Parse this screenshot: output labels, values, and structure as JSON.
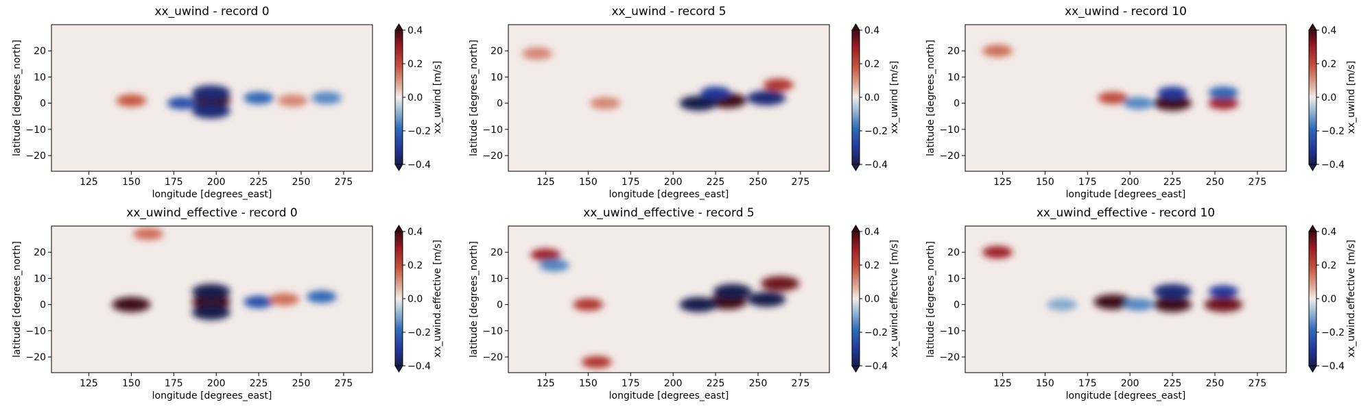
{
  "chart_data": [
    {
      "type": "heatmap",
      "title": "xx_uwind - record 0",
      "variable": "xx_uwind",
      "record": 0,
      "xlabel": "longitude [degrees_east]",
      "ylabel": "latitude [degrees_north]",
      "colorbar_label": "xx_uwind [m/s]",
      "colormap": "diverging blue-white-red",
      "xlim": [
        103,
        292
      ],
      "ylim": [
        -26,
        30
      ],
      "clim": [
        -0.4,
        0.4
      ],
      "xticks": [
        125,
        150,
        175,
        200,
        225,
        250,
        275
      ],
      "yticks": [
        -20,
        -10,
        0,
        10,
        20
      ],
      "cbar_ticks": [
        -0.4,
        -0.2,
        0.0,
        0.2,
        0.4
      ],
      "features": [
        {
          "lon": 197,
          "lat": 1,
          "value": 0.4
        },
        {
          "lon": 197,
          "lat": 4,
          "value": -0.35
        },
        {
          "lon": 197,
          "lat": -3,
          "value": -0.35
        },
        {
          "lon": 180,
          "lat": 0,
          "value": -0.25
        },
        {
          "lon": 150,
          "lat": 1,
          "value": 0.18
        },
        {
          "lon": 225,
          "lat": 2,
          "value": -0.2
        },
        {
          "lon": 245,
          "lat": 1,
          "value": 0.12
        },
        {
          "lon": 265,
          "lat": 2,
          "value": -0.15
        }
      ]
    },
    {
      "type": "heatmap",
      "title": "xx_uwind - record 5",
      "variable": "xx_uwind",
      "record": 5,
      "xlabel": "longitude [degrees_east]",
      "ylabel": "latitude [degrees_north]",
      "colorbar_label": "xx_uwind [m/s]",
      "colormap": "diverging blue-white-red",
      "xlim": [
        103,
        292
      ],
      "ylim": [
        -26,
        30
      ],
      "clim": [
        -0.4,
        0.4
      ],
      "xticks": [
        125,
        150,
        175,
        200,
        225,
        250,
        275
      ],
      "yticks": [
        -20,
        -10,
        0,
        10,
        20
      ],
      "cbar_ticks": [
        -0.4,
        -0.2,
        0.0,
        0.2,
        0.4
      ],
      "features": [
        {
          "lon": 232,
          "lat": 1,
          "value": 0.4
        },
        {
          "lon": 215,
          "lat": 0,
          "value": -0.4
        },
        {
          "lon": 255,
          "lat": 2,
          "value": -0.35
        },
        {
          "lon": 225,
          "lat": 4,
          "value": -0.3
        },
        {
          "lon": 262,
          "lat": 7,
          "value": 0.25
        },
        {
          "lon": 160,
          "lat": 0,
          "value": 0.12
        },
        {
          "lon": 120,
          "lat": 19,
          "value": 0.12
        }
      ]
    },
    {
      "type": "heatmap",
      "title": "xx_uwind - record 10",
      "variable": "xx_uwind",
      "record": 10,
      "xlabel": "longitude [degrees_east]",
      "ylabel": "latitude [degrees_north]",
      "colorbar_label": "xx_uwind [m/s]",
      "colormap": "diverging blue-white-red",
      "xlim": [
        103,
        292
      ],
      "ylim": [
        -26,
        30
      ],
      "clim": [
        -0.4,
        0.4
      ],
      "xticks": [
        125,
        150,
        175,
        200,
        225,
        250,
        275
      ],
      "yticks": [
        -20,
        -10,
        0,
        10,
        20
      ],
      "cbar_ticks": [
        -0.4,
        -0.2,
        0.0,
        0.2,
        0.4
      ],
      "features": [
        {
          "lon": 225,
          "lat": 0,
          "value": 0.4
        },
        {
          "lon": 225,
          "lat": 4,
          "value": -0.3
        },
        {
          "lon": 255,
          "lat": 0,
          "value": 0.3
        },
        {
          "lon": 255,
          "lat": 4,
          "value": -0.2
        },
        {
          "lon": 190,
          "lat": 2,
          "value": 0.2
        },
        {
          "lon": 205,
          "lat": 0,
          "value": -0.15
        },
        {
          "lon": 122,
          "lat": 20,
          "value": 0.15
        }
      ]
    },
    {
      "type": "heatmap",
      "title": "xx_uwind_effective - record 0",
      "variable": "xx_uwind_effective",
      "record": 0,
      "xlabel": "longitude [degrees_east]",
      "ylabel": "latitude [degrees_north]",
      "colorbar_label": "xx_uwind.effective [m/s]",
      "colormap": "diverging blue-white-red",
      "xlim": [
        103,
        292
      ],
      "ylim": [
        -26,
        30
      ],
      "clim": [
        -0.4,
        0.4
      ],
      "xticks": [
        125,
        150,
        175,
        200,
        225,
        250,
        275
      ],
      "yticks": [
        -20,
        -10,
        0,
        10,
        20
      ],
      "cbar_ticks": [
        -0.4,
        -0.2,
        0.0,
        0.2,
        0.4
      ],
      "features": [
        {
          "lon": 197,
          "lat": 1,
          "value": 0.4
        },
        {
          "lon": 197,
          "lat": 5,
          "value": -0.4
        },
        {
          "lon": 197,
          "lat": -3,
          "value": -0.4
        },
        {
          "lon": 150,
          "lat": 0,
          "value": 0.4
        },
        {
          "lon": 225,
          "lat": 1,
          "value": -0.25
        },
        {
          "lon": 240,
          "lat": 2,
          "value": 0.15
        },
        {
          "lon": 262,
          "lat": 3,
          "value": -0.2
        },
        {
          "lon": 160,
          "lat": 27,
          "value": 0.15
        }
      ]
    },
    {
      "type": "heatmap",
      "title": "xx_uwind_effective - record 5",
      "variable": "xx_uwind_effective",
      "record": 5,
      "xlabel": "longitude [degrees_east]",
      "ylabel": "latitude [degrees_north]",
      "colorbar_label": "xx_uwind.effective [m/s]",
      "colormap": "diverging blue-white-red",
      "xlim": [
        103,
        292
      ],
      "ylim": [
        -26,
        30
      ],
      "clim": [
        -0.4,
        0.4
      ],
      "xticks": [
        125,
        150,
        175,
        200,
        225,
        250,
        275
      ],
      "yticks": [
        -20,
        -10,
        0,
        10,
        20
      ],
      "cbar_ticks": [
        -0.4,
        -0.2,
        0.0,
        0.2,
        0.4
      ],
      "features": [
        {
          "lon": 232,
          "lat": 1,
          "value": 0.4
        },
        {
          "lon": 215,
          "lat": 0,
          "value": -0.4
        },
        {
          "lon": 235,
          "lat": 5,
          "value": -0.4
        },
        {
          "lon": 255,
          "lat": 2,
          "value": -0.4
        },
        {
          "lon": 263,
          "lat": 8,
          "value": 0.35
        },
        {
          "lon": 150,
          "lat": 0,
          "value": 0.25
        },
        {
          "lon": 125,
          "lat": 19,
          "value": 0.3
        },
        {
          "lon": 155,
          "lat": -22,
          "value": 0.25
        },
        {
          "lon": 130,
          "lat": 15,
          "value": -0.15
        }
      ]
    },
    {
      "type": "heatmap",
      "title": "xx_uwind_effective - record 10",
      "variable": "xx_uwind_effective",
      "record": 10,
      "xlabel": "longitude [degrees_east]",
      "ylabel": "latitude [degrees_north]",
      "colorbar_label": "xx_uwind.effective [m/s]",
      "colormap": "diverging blue-white-red",
      "xlim": [
        103,
        292
      ],
      "ylim": [
        -26,
        30
      ],
      "clim": [
        -0.4,
        0.4
      ],
      "xticks": [
        125,
        150,
        175,
        200,
        225,
        250,
        275
      ],
      "yticks": [
        -20,
        -10,
        0,
        10,
        20
      ],
      "cbar_ticks": [
        -0.4,
        -0.2,
        0.0,
        0.2,
        0.4
      ],
      "features": [
        {
          "lon": 190,
          "lat": 1,
          "value": 0.4
        },
        {
          "lon": 225,
          "lat": 0,
          "value": 0.4
        },
        {
          "lon": 225,
          "lat": 5,
          "value": -0.35
        },
        {
          "lon": 255,
          "lat": 0,
          "value": 0.35
        },
        {
          "lon": 255,
          "lat": 5,
          "value": -0.3
        },
        {
          "lon": 205,
          "lat": 0,
          "value": -0.15
        },
        {
          "lon": 122,
          "lat": 20,
          "value": 0.3
        },
        {
          "lon": 160,
          "lat": 0,
          "value": -0.1
        }
      ]
    }
  ]
}
